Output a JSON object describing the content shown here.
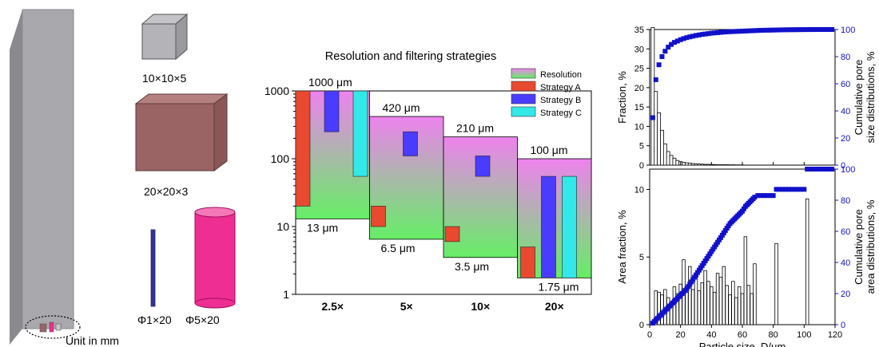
{
  "colors": {
    "res_top": "#ee82ee",
    "res_bottom": "#66ee66",
    "strategy_a": "#e8492f",
    "strategy_b": "#4a3cff",
    "strategy_c": "#33e8e8",
    "cumulative": "#1111cc",
    "sample_gray": "#a9a9ad",
    "sample_brown": "#9a6464",
    "sample_pink": "#ee2e92"
  },
  "left_panel": {
    "samples": [
      "10×10×5",
      "20×20×3",
      "Φ1×20",
      "Φ5×20"
    ],
    "unit_note": "Unit in mm"
  },
  "chart_data": [
    {
      "type": "bar",
      "title": "Resolution and filtering strategies",
      "yscale": "log",
      "ylim": [
        1,
        1000
      ],
      "ytick_labels": [
        "1",
        "10",
        "100",
        "1000"
      ],
      "categories": [
        "2.5×",
        "5×",
        "10×",
        "20×"
      ],
      "resolution_ranges_um": [
        {
          "min": 13,
          "max": 1000,
          "min_label": "13 μm",
          "max_label": "1000 μm"
        },
        {
          "min": 6.5,
          "max": 420,
          "min_label": "6.5 μm",
          "max_label": "420 μm"
        },
        {
          "min": 3.5,
          "max": 210,
          "min_label": "3.5 μm",
          "max_label": "210 μm"
        },
        {
          "min": 1.75,
          "max": 100,
          "min_label": "1.75 μm",
          "max_label": "100 μm"
        }
      ],
      "series": [
        {
          "name": "Resolution"
        },
        {
          "name": "Strategy A",
          "ranges": [
            [
              20,
              1000
            ],
            [
              10,
              20
            ],
            [
              6,
              10
            ],
            [
              1.75,
              5
            ]
          ]
        },
        {
          "name": "Strategy B",
          "ranges": [
            [
              250,
              1000
            ],
            [
              110,
              250
            ],
            [
              55,
              110
            ],
            [
              1.75,
              55
            ]
          ]
        },
        {
          "name": "Strategy C",
          "ranges": [
            [
              55,
              1000
            ],
            null,
            null,
            [
              1.75,
              55
            ]
          ]
        }
      ],
      "legend_position": "top-right"
    },
    {
      "type": "bar+scatter",
      "xlim": [
        0,
        120
      ],
      "ylabel_left": "Fraction, %",
      "ylabel_right": "Cumulative pore size distributions, %",
      "ylim_left": [
        0,
        35
      ],
      "ylim_right": [
        0,
        100
      ],
      "yticks_left": [
        0,
        5,
        10,
        15,
        20,
        25,
        30,
        35
      ],
      "yticks_right": [
        0,
        20,
        40,
        60,
        80,
        100
      ],
      "bar_x": [
        2,
        4,
        6,
        8,
        10,
        12,
        14,
        16,
        18,
        20,
        22,
        24,
        26,
        28,
        30,
        32,
        34,
        36,
        38,
        40,
        42,
        44,
        46,
        48,
        50,
        52,
        54,
        56,
        58,
        60
      ],
      "fraction": [
        35.5,
        19,
        13.5,
        9,
        5.5,
        3.5,
        2.5,
        1.8,
        1.2,
        0.9,
        0.7,
        0.6,
        0.5,
        0.4,
        0.35,
        0.3,
        0.25,
        0.2,
        0.2,
        0.15,
        0.15,
        0.1,
        0.1,
        0.1,
        0.1,
        0.08,
        0.08,
        0.06,
        0.06,
        0.05
      ],
      "cumulative_x": [
        2,
        4,
        6,
        8,
        10,
        12,
        14,
        16,
        18,
        20,
        22,
        24,
        26,
        28,
        30,
        32,
        34,
        36,
        38,
        40,
        42,
        44,
        46,
        48,
        50,
        52,
        54,
        56,
        58,
        60,
        62,
        64,
        66,
        68,
        70,
        72,
        74,
        76,
        78,
        80,
        82,
        84,
        86,
        88,
        90,
        92,
        94,
        96,
        98,
        100,
        102,
        104,
        106,
        108,
        110,
        112,
        114,
        116,
        118
      ],
      "cumulative": [
        35,
        63,
        74,
        80,
        84,
        87,
        89,
        90.5,
        91.5,
        92.5,
        93.3,
        94,
        94.6,
        95.1,
        95.6,
        96,
        96.4,
        96.7,
        97,
        97.3,
        97.5,
        97.7,
        97.9,
        98.1,
        98.3,
        98.4,
        98.5,
        98.6,
        98.7,
        98.8,
        98.9,
        99,
        99.1,
        99.2,
        99.3,
        99.4,
        99.45,
        99.5,
        99.55,
        99.6,
        99.65,
        99.7,
        99.75,
        99.8,
        99.82,
        99.85,
        99.87,
        99.9,
        99.92,
        99.94,
        99.96,
        99.97,
        99.98,
        99.99,
        100,
        100,
        100,
        100,
        100
      ]
    },
    {
      "type": "bar+scatter",
      "xlabel": "Particle size, D/μm",
      "xlim": [
        0,
        120
      ],
      "xticks": [
        0,
        20,
        40,
        60,
        80,
        100,
        120
      ],
      "ylabel_left": "Area fraction, %",
      "ylabel_right": "Cumulative pore area distributions, %",
      "ylim_left": [
        0,
        11.5
      ],
      "ylim_right": [
        0,
        100
      ],
      "yticks_left": [
        0,
        5,
        10
      ],
      "yticks_right": [
        0,
        20,
        40,
        60,
        80,
        100
      ],
      "bar_x": [
        4,
        6,
        8,
        10,
        12,
        14,
        16,
        18,
        20,
        22,
        24,
        26,
        28,
        30,
        32,
        34,
        36,
        38,
        40,
        42,
        44,
        46,
        48,
        50,
        52,
        54,
        56,
        58,
        60,
        62,
        64,
        66,
        68,
        82,
        102
      ],
      "area_fraction": [
        2.5,
        2.4,
        2.2,
        2.6,
        2.0,
        1.6,
        2.8,
        2.3,
        3.0,
        4.8,
        2.4,
        4.3,
        2.6,
        3.5,
        2.5,
        3.1,
        4.0,
        3.2,
        2.8,
        2.4,
        3.8,
        3.5,
        4.3,
        2.9,
        2.2,
        3.2,
        2.0,
        2.8,
        2.3,
        6.5,
        2.9,
        2.3,
        4.5,
        6.0,
        9.3
      ],
      "cumulative_x": [
        2,
        3,
        4,
        5,
        6,
        7,
        8,
        9,
        10,
        11,
        12,
        13,
        14,
        15,
        16,
        17,
        18,
        19,
        20,
        21,
        22,
        23,
        24,
        25,
        26,
        27,
        28,
        29,
        30,
        31,
        32,
        33,
        34,
        35,
        36,
        37,
        38,
        39,
        40,
        41,
        42,
        43,
        44,
        45,
        46,
        47,
        48,
        49,
        50,
        51,
        52,
        53,
        54,
        55,
        56,
        57,
        58,
        59,
        60,
        61,
        62,
        63,
        64,
        65,
        66,
        67,
        68,
        70,
        72,
        74,
        76,
        78,
        80,
        82,
        84,
        86,
        88,
        90,
        92,
        94,
        96,
        98,
        100,
        102,
        104,
        106,
        108,
        110,
        112,
        114,
        116,
        118
      ],
      "cumulative": [
        1,
        2,
        3,
        4,
        5,
        6,
        7,
        8,
        9,
        10,
        11,
        12,
        13,
        14,
        15,
        16,
        17,
        18,
        19,
        20,
        21,
        22,
        23,
        24.5,
        26,
        27.5,
        29,
        30.5,
        32,
        33.5,
        35,
        36.5,
        38,
        39.5,
        41,
        42.5,
        44,
        45.5,
        47,
        48.5,
        50,
        51.5,
        53,
        54.5,
        56,
        57.5,
        59,
        60.5,
        62,
        63.5,
        65,
        66,
        67,
        68,
        69,
        70,
        71,
        72,
        73,
        74.5,
        76,
        77,
        78,
        79,
        80,
        81,
        82,
        83,
        83,
        83,
        83,
        83,
        83,
        87,
        87,
        87,
        87,
        87,
        87,
        87,
        87,
        87,
        87,
        100,
        100,
        100,
        100,
        100,
        100,
        100,
        100,
        100
      ]
    }
  ]
}
